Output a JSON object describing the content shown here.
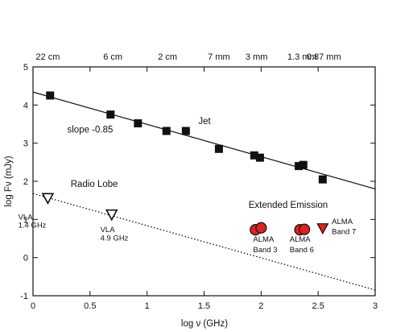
{
  "chart_data": {
    "type": "scatter",
    "xlabel": "log ν (GHz)",
    "ylabel": "log Fν (mJy)",
    "xlim": [
      0,
      3
    ],
    "ylim": [
      -1,
      5
    ],
    "xticks": [
      "0",
      "0.5",
      "1",
      "1.5",
      "2",
      "2.5",
      "3"
    ],
    "yticks": [
      "-1",
      "0",
      "1",
      "2",
      "3",
      "4",
      "5"
    ],
    "top_axis": {
      "ticks": [
        {
          "x": 0.13,
          "label": "22 cm"
        },
        {
          "x": 0.7,
          "label": "6 cm"
        },
        {
          "x": 1.18,
          "label": "2 cm"
        },
        {
          "x": 1.63,
          "label": "7 mm"
        },
        {
          "x": 1.96,
          "label": "3 mm"
        },
        {
          "x": 2.36,
          "label": "1.3 mm"
        },
        {
          "x": 2.55,
          "label": "0.87 mm"
        }
      ]
    },
    "series": [
      {
        "marker": "filled-square",
        "color": "#111111",
        "points": [
          {
            "x": 0.15,
            "y": 4.25
          },
          {
            "x": 0.68,
            "y": 3.75
          },
          {
            "x": 0.92,
            "y": 3.52
          },
          {
            "x": 1.17,
            "y": 3.32
          },
          {
            "x": 1.34,
            "y": 3.32
          },
          {
            "x": 1.63,
            "y": 2.85
          },
          {
            "x": 1.94,
            "y": 2.68
          },
          {
            "x": 1.99,
            "y": 2.62
          },
          {
            "x": 2.33,
            "y": 2.4
          },
          {
            "x": 2.37,
            "y": 2.43
          },
          {
            "x": 2.54,
            "y": 2.05
          }
        ]
      },
      {
        "marker": "open-triangle-down",
        "color": "#111111",
        "points": [
          {
            "x": 0.13,
            "y": 1.55
          },
          {
            "x": 0.69,
            "y": 1.12
          }
        ]
      },
      {
        "marker": "filled-circle",
        "color": "#e02020",
        "points": [
          {
            "x": 1.95,
            "y": 0.73
          },
          {
            "x": 2.0,
            "y": 0.78
          },
          {
            "x": 2.34,
            "y": 0.73
          },
          {
            "x": 2.38,
            "y": 0.74
          }
        ]
      },
      {
        "marker": "filled-triangle-down",
        "color": "#e02020",
        "points": [
          {
            "x": 2.54,
            "y": 0.76
          }
        ]
      }
    ],
    "lines": [
      {
        "style": "solid",
        "from": {
          "x": 0,
          "y": 4.34
        },
        "to": {
          "x": 3,
          "y": 1.8
        }
      },
      {
        "style": "dotted",
        "from": {
          "x": 0,
          "y": 1.68
        },
        "to": {
          "x": 3,
          "y": -0.85
        }
      }
    ],
    "annotations": [
      {
        "id": "jet",
        "text": "Jet",
        "x": 1.45,
        "y": 3.5
      },
      {
        "id": "slope",
        "text": "slope -0.85",
        "x": 0.3,
        "y": 3.28
      },
      {
        "id": "radio_lobe",
        "text": "Radio Lobe",
        "x": 0.33,
        "y": 1.85
      },
      {
        "id": "extended",
        "text": "Extended Emission",
        "x": 1.89,
        "y": 1.3
      },
      {
        "id": "vla14_a",
        "text": "VLA",
        "x": -0.13,
        "y": 1.0,
        "small": true
      },
      {
        "id": "vla14_b",
        "text": "1.4 GHz",
        "x": -0.13,
        "y": 0.78,
        "small": true
      },
      {
        "id": "vla49_a",
        "text": "VLA",
        "x": 0.59,
        "y": 0.67,
        "small": true
      },
      {
        "id": "vla49_b",
        "text": "4.9 GHz",
        "x": 0.59,
        "y": 0.45,
        "small": true
      },
      {
        "id": "alma3_a",
        "text": "ALMA",
        "x": 1.93,
        "y": 0.42,
        "small": true
      },
      {
        "id": "alma3_b",
        "text": "Band 3",
        "x": 1.93,
        "y": 0.14,
        "small": true
      },
      {
        "id": "alma6_a",
        "text": "ALMA",
        "x": 2.25,
        "y": 0.42,
        "small": true
      },
      {
        "id": "alma6_b",
        "text": "Band 6",
        "x": 2.25,
        "y": 0.14,
        "small": true
      },
      {
        "id": "alma7_a",
        "text": "ALMA",
        "x": 2.62,
        "y": 0.88,
        "small": true
      },
      {
        "id": "alma7_b",
        "text": "Band 7",
        "x": 2.62,
        "y": 0.62,
        "small": true
      }
    ]
  }
}
